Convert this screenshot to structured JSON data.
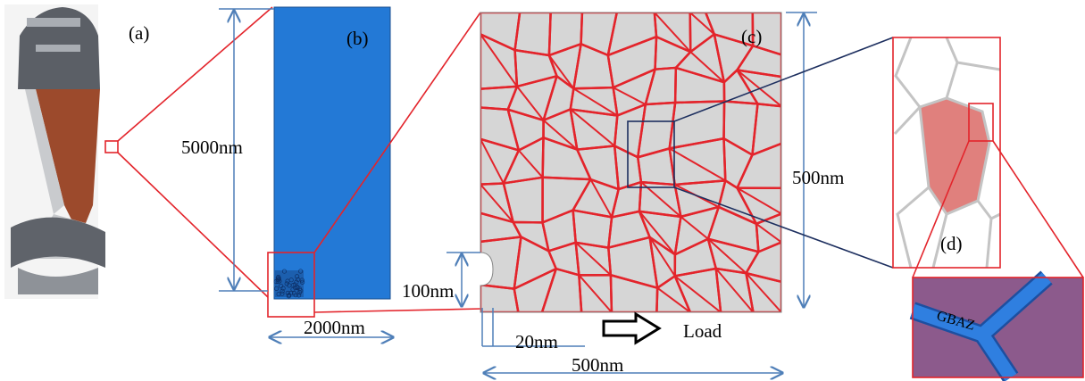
{
  "panels": {
    "a": {
      "label": "(a)"
    },
    "b": {
      "label": "(b)",
      "height": "5000nm",
      "width": "2000nm"
    },
    "c": {
      "label": "(c)",
      "height": "500nm",
      "width": "500nm",
      "notch_depth": "100nm",
      "notch_width": "20nm",
      "load": "Load"
    },
    "d": {
      "label": "(d)",
      "zoom_label": "GBAZ"
    }
  }
}
